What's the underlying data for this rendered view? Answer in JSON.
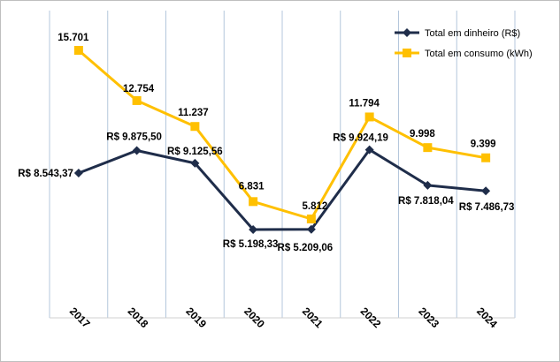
{
  "chart_data": {
    "type": "line",
    "categories": [
      "2017",
      "2018",
      "2019",
      "2020",
      "2021",
      "2022",
      "2023",
      "2024"
    ],
    "series": [
      {
        "name": "Total em dinheiro (R$)",
        "color": "#1f2d4a",
        "marker": "diamond",
        "values": [
          8543.37,
          9875.5,
          9125.56,
          5198.33,
          5209.06,
          9924.19,
          7818.04,
          7486.73
        ],
        "labels": [
          "R$ 8.543,37",
          "R$ 9.875,50",
          "R$ 9.125,56",
          "R$ 5.198,33",
          "R$ 5.209,06",
          "R$ 9.924,19",
          "R$ 7.818,04",
          "R$ 7.486,73"
        ]
      },
      {
        "name": "Total em consumo (kWh)",
        "color": "#ffc000",
        "marker": "square",
        "values": [
          15701,
          12754,
          11237,
          6831,
          5812,
          11794,
          9998,
          9399
        ],
        "labels": [
          "15.701",
          "12.754",
          "11.237",
          "6.831",
          "5.812",
          "11.794",
          "9.998",
          "9.399"
        ]
      }
    ],
    "gridlines": "vertical",
    "gridline_color": "#b4c7dc",
    "legend_position": "top-right",
    "xlabel": "",
    "ylabel": ""
  }
}
